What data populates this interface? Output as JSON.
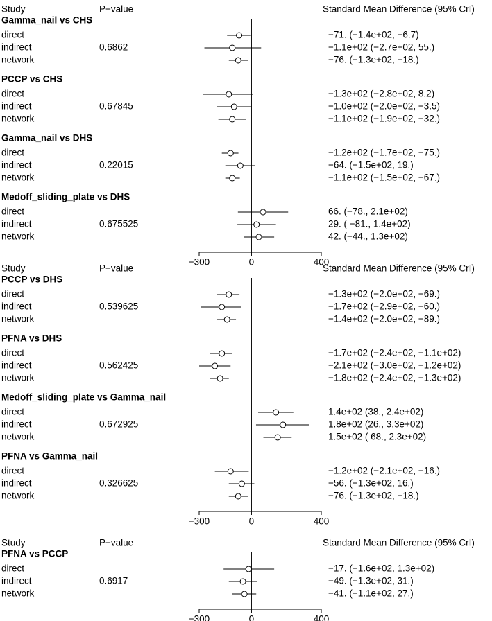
{
  "chart_data": {
    "type": "forest",
    "header": {
      "study": "Study",
      "pvalue": "P−value",
      "estimate": "Standard Mean Difference (95% CrI)"
    },
    "xlim": [
      -300,
      400
    ],
    "xticks": [
      -300,
      0,
      400
    ],
    "xtick_labels": [
      "−300",
      "0",
      "400"
    ],
    "reference_line": 0,
    "panels": [
      {
        "comparisons": [
          {
            "title": "Gamma_nail vs CHS",
            "pvalue": "0.6862",
            "rows": [
              {
                "label": "direct",
                "est": -71,
                "lo": -140,
                "hi": -6.7,
                "text": "−71. (−1.4e+02, −6.7)"
              },
              {
                "label": "indirect",
                "est": -110,
                "lo": -270,
                "hi": 55,
                "text": "−1.1e+02 (−2.7e+02,   55.)"
              },
              {
                "label": "network",
                "est": -76,
                "lo": -130,
                "hi": -18,
                "text": "−76. (−1.3e+02,  −18.)"
              }
            ]
          },
          {
            "title": "PCCP vs CHS",
            "pvalue": "0.67845",
            "rows": [
              {
                "label": "direct",
                "est": -130,
                "lo": -280,
                "hi": 8.2,
                "text": "−1.3e+02 (−2.8e+02, 8.2)"
              },
              {
                "label": "indirect",
                "est": -100,
                "lo": -200,
                "hi": -3.5,
                "text": "−1.0e+02 (−2.0e+02, −3.5)"
              },
              {
                "label": "network",
                "est": -110,
                "lo": -190,
                "hi": -32,
                "text": "−1.1e+02 (−1.9e+02, −32.)"
              }
            ]
          },
          {
            "title": "Gamma_nail vs DHS",
            "pvalue": "0.22015",
            "rows": [
              {
                "label": "direct",
                "est": -120,
                "lo": -170,
                "hi": -75,
                "text": "−1.2e+02 (−1.7e+02, −75.)"
              },
              {
                "label": "indirect",
                "est": -64,
                "lo": -150,
                "hi": 19,
                "text": "−64. (−1.5e+02,   19.)"
              },
              {
                "label": "network",
                "est": -110,
                "lo": -150,
                "hi": -67,
                "text": "−1.1e+02 (−1.5e+02, −67.)"
              }
            ]
          },
          {
            "title": "Medoff_sliding_plate vs DHS",
            "pvalue": "0.675525",
            "rows": [
              {
                "label": "direct",
                "est": 66,
                "lo": -78,
                "hi": 210,
                "text": "66. (−78., 2.1e+02)"
              },
              {
                "label": "indirect",
                "est": 29,
                "lo": -81,
                "hi": 140,
                "text": "29. ( −81., 1.4e+02)"
              },
              {
                "label": "network",
                "est": 42,
                "lo": -44,
                "hi": 130,
                "text": "42. (−44., 1.3e+02)"
              }
            ]
          }
        ]
      },
      {
        "comparisons": [
          {
            "title": "PCCP vs DHS",
            "pvalue": "0.539625",
            "rows": [
              {
                "label": "direct",
                "est": -130,
                "lo": -200,
                "hi": -69,
                "text": "−1.3e+02 (−2.0e+02, −69.)"
              },
              {
                "label": "indirect",
                "est": -170,
                "lo": -290,
                "hi": -60,
                "text": "−1.7e+02 (−2.9e+02, −60.)"
              },
              {
                "label": "network",
                "est": -140,
                "lo": -200,
                "hi": -89,
                "text": "−1.4e+02 (−2.0e+02,  −89.)"
              }
            ]
          },
          {
            "title": "PFNA vs DHS",
            "pvalue": "0.562425",
            "rows": [
              {
                "label": "direct",
                "est": -170,
                "lo": -240,
                "hi": -110,
                "text": "−1.7e+02 (−2.4e+02, −1.1e+02)"
              },
              {
                "label": "indirect",
                "est": -210,
                "lo": -300,
                "hi": -120,
                "text": "−2.1e+02 (−3.0e+02, −1.2e+02)"
              },
              {
                "label": "network",
                "est": -180,
                "lo": -240,
                "hi": -130,
                "text": "−1.8e+02 (−2.4e+02, −1.3e+02)"
              }
            ]
          },
          {
            "title": "Medoff_sliding_plate vs Gamma_nail",
            "pvalue": "0.672925",
            "rows": [
              {
                "label": "direct",
                "est": 140,
                "lo": 38,
                "hi": 240,
                "text": "1.4e+02 (38., 2.4e+02)"
              },
              {
                "label": "indirect",
                "est": 180,
                "lo": 26,
                "hi": 330,
                "text": "1.8e+02 (26., 3.3e+02)"
              },
              {
                "label": "network",
                "est": 150,
                "lo": 68,
                "hi": 230,
                "text": "1.5e+02 ( 68., 2.3e+02)"
              }
            ]
          },
          {
            "title": "PFNA vs Gamma_nail",
            "pvalue": "0.326625",
            "rows": [
              {
                "label": "direct",
                "est": -120,
                "lo": -210,
                "hi": -16,
                "text": "−1.2e+02 (−2.1e+02,  −16.)"
              },
              {
                "label": "indirect",
                "est": -56,
                "lo": -130,
                "hi": 16,
                "text": "−56. (−1.3e+02, 16.)"
              },
              {
                "label": "network",
                "est": -76,
                "lo": -130,
                "hi": -18,
                "text": "−76. (−1.3e+02, −18.)"
              }
            ]
          }
        ]
      },
      {
        "comparisons": [
          {
            "title": "PFNA vs PCCP",
            "pvalue": "0.6917",
            "rows": [
              {
                "label": "direct",
                "est": -17,
                "lo": -160,
                "hi": 130,
                "text": "−17. (−1.6e+02, 1.3e+02)"
              },
              {
                "label": "indirect",
                "est": -49,
                "lo": -130,
                "hi": 31,
                "text": "−49. (−1.3e+02, 31.)"
              },
              {
                "label": "network",
                "est": -41,
                "lo": -110,
                "hi": 27,
                "text": "−41. (−1.1e+02, 27.)"
              }
            ]
          }
        ]
      }
    ]
  }
}
